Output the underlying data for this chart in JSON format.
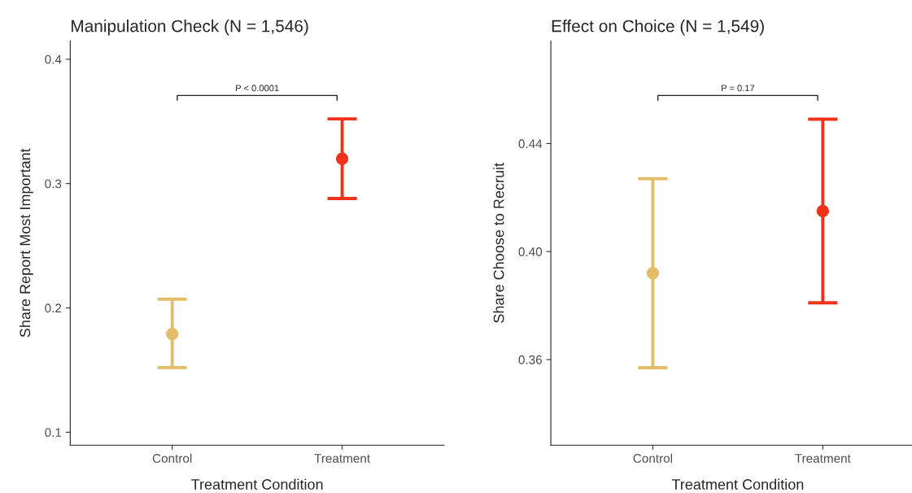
{
  "chart_data": [
    {
      "type": "scatter",
      "title": "Manipulation Check (N = 1,546)",
      "xlabel": "Treatment Condition",
      "ylabel": "Share Report Most Important",
      "categories": [
        "Control",
        "Treatment"
      ],
      "values": [
        0.179,
        0.32
      ],
      "errors": [
        [
          0.152,
          0.207
        ],
        [
          0.288,
          0.352
        ]
      ],
      "colors": [
        "#e3bd6a",
        "#f0321a"
      ],
      "marker": "circle",
      "ylim": [
        0.0896,
        0.4147
      ],
      "yticks": [
        0.1,
        0.2,
        0.3,
        0.4
      ],
      "grid": false,
      "legend": false,
      "annotations": [
        "P < 0.0001"
      ]
    },
    {
      "type": "scatter",
      "title": "Effect on Choice (N = 1,549)",
      "xlabel": "Treatment Condition",
      "ylabel": "Share Choose to Recruit",
      "categories": [
        "Control",
        "Treatment"
      ],
      "values": [
        0.392,
        0.415
      ],
      "errors": [
        [
          0.357,
          0.427
        ],
        [
          0.381,
          0.449
        ]
      ],
      "colors": [
        "#e3bd6a",
        "#f0321a"
      ],
      "marker": "circle",
      "ylim": [
        0.3283,
        0.478
      ],
      "yticks": [
        {
          "value": 0.36,
          "label": "0.36"
        },
        {
          "value": 0.4,
          "label": "0.40"
        },
        {
          "value": 0.44,
          "label": "0.44"
        }
      ],
      "grid": false,
      "legend": false,
      "annotations": [
        "P = 0.17"
      ]
    }
  ]
}
